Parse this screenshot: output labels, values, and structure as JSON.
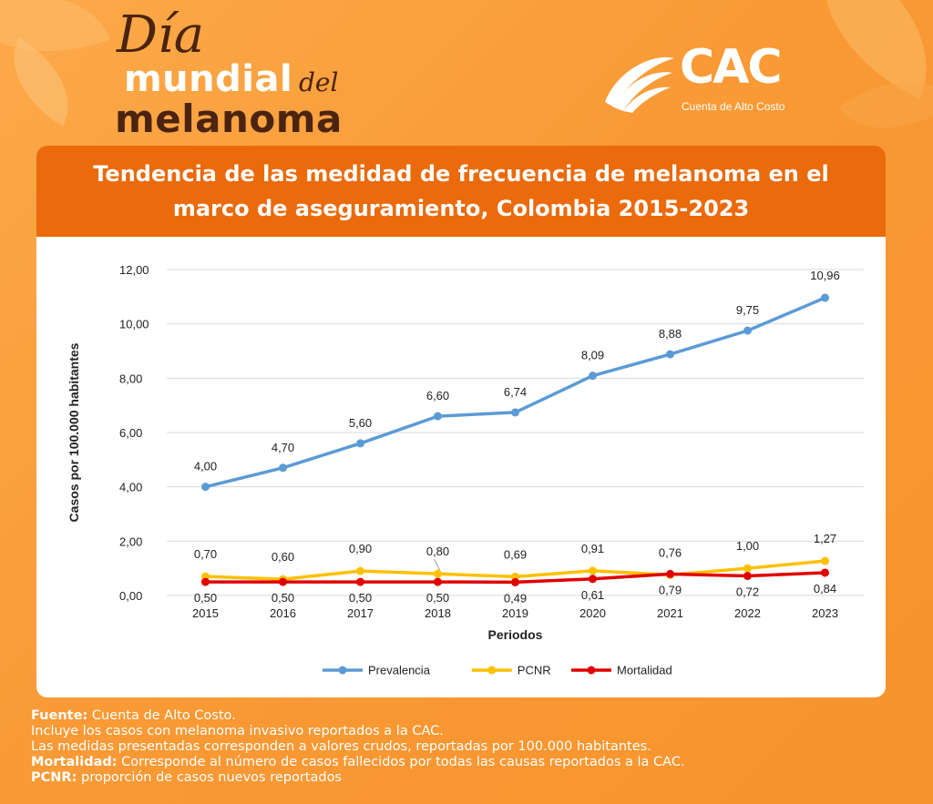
{
  "brand": {
    "title_line1": "Día",
    "title_line2": "mundial",
    "title_small": "del",
    "title_line3": "melanoma",
    "logo_text": "CAC",
    "logo_subtitle": "Cuenta de Alto Costo"
  },
  "card": {
    "title": "Tendencia de las medidad de frecuencia de melanoma en el marco de aseguramiento, Colombia 2015-2023"
  },
  "colors": {
    "background": "#f99a36",
    "header": "#ea6a0c",
    "prevalencia": "#5b9bd5",
    "pcnr": "#ffc000",
    "mortalidad": "#e00000"
  },
  "chart_data": {
    "type": "line",
    "x": [
      "2015",
      "2016",
      "2017",
      "2018",
      "2019",
      "2020",
      "2021",
      "2022",
      "2023"
    ],
    "xlabel": "Periodos",
    "ylabel": "Casos por 100.000 habitantes",
    "ylim": [
      0,
      12
    ],
    "yticks": [
      "0,00",
      "2,00",
      "4,00",
      "6,00",
      "8,00",
      "10,00",
      "12,00"
    ],
    "grid": true,
    "legend": "bottom",
    "series": [
      {
        "name": "Prevalencia",
        "color": "#5b9bd5",
        "values": [
          4.0,
          4.7,
          5.6,
          6.6,
          6.74,
          8.09,
          8.88,
          9.75,
          10.96
        ],
        "labels": [
          "4,00",
          "4,70",
          "5,60",
          "6,60",
          "6,74",
          "8,09",
          "8,88",
          "9,75",
          "10,96"
        ]
      },
      {
        "name": "PCNR",
        "color": "#ffc000",
        "values": [
          0.7,
          0.6,
          0.9,
          0.8,
          0.69,
          0.91,
          0.76,
          1.0,
          1.27
        ],
        "labels": [
          "0,70",
          "0,60",
          "0,90",
          "0,80",
          "0,69",
          "0,91",
          "0,76",
          "1,00",
          "1,27"
        ]
      },
      {
        "name": "Mortalidad",
        "color": "#e00000",
        "values": [
          0.5,
          0.5,
          0.5,
          0.5,
          0.49,
          0.61,
          0.79,
          0.72,
          0.84
        ],
        "labels": [
          "0,50",
          "0,50",
          "0,50",
          "0,50",
          "0,49",
          "0,61",
          "0,79",
          "0,72",
          "0,84"
        ]
      }
    ]
  },
  "footer": {
    "fuente_label": "Fuente:",
    "fuente_text": " Cuenta de Alto Costo.",
    "line2": "Incluye los casos con melanoma invasivo reportados a la CAC.",
    "line3": "Las medidas presentadas corresponden a valores crudos, reportadas por 100.000 habitantes.",
    "mortalidad_label": "Mortalidad:",
    "mortalidad_text": " Corresponde al número de casos fallecidos por todas las causas reportados a la CAC.",
    "pcnr_label": "PCNR:",
    "pcnr_text": " proporción de casos nuevos reportados"
  }
}
